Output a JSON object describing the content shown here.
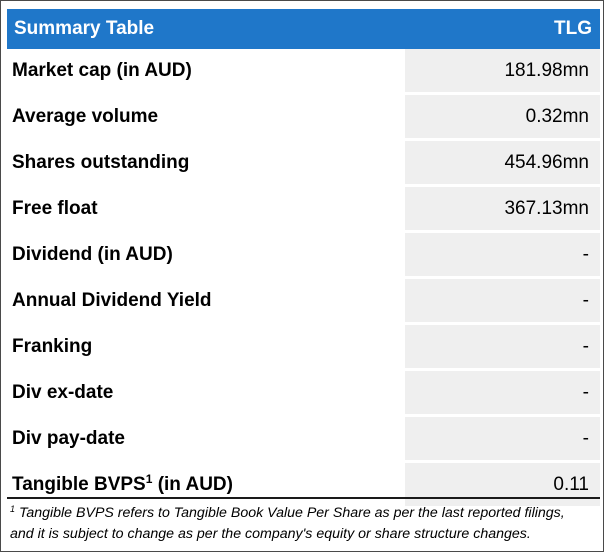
{
  "header": {
    "title": "Summary Table",
    "ticker": "TLG"
  },
  "rows": [
    {
      "label": "Market cap (in AUD)",
      "value": "181.98mn"
    },
    {
      "label": "Average volume",
      "value": "0.32mn"
    },
    {
      "label": "Shares outstanding",
      "value": "454.96mn"
    },
    {
      "label": "Free float",
      "value": "367.13mn"
    },
    {
      "label": "Dividend (in AUD)",
      "value": "-"
    },
    {
      "label": "Annual Dividend Yield",
      "value": "-"
    },
    {
      "label": "Franking",
      "value": "-"
    },
    {
      "label": "Div ex-date",
      "value": "-"
    },
    {
      "label": "Div pay-date",
      "value": "-"
    },
    {
      "label_main": "Tangible BVPS",
      "label_sup": "1",
      "label_suffix": " (in AUD)",
      "value": "0.11"
    }
  ],
  "footnote": {
    "marker": "1",
    "line1": " Tangible BVPS refers to Tangible Book Value Per Share as per the last reported filings,",
    "line2": "and it is subject to change as per the company's equity or share structure changes."
  }
}
